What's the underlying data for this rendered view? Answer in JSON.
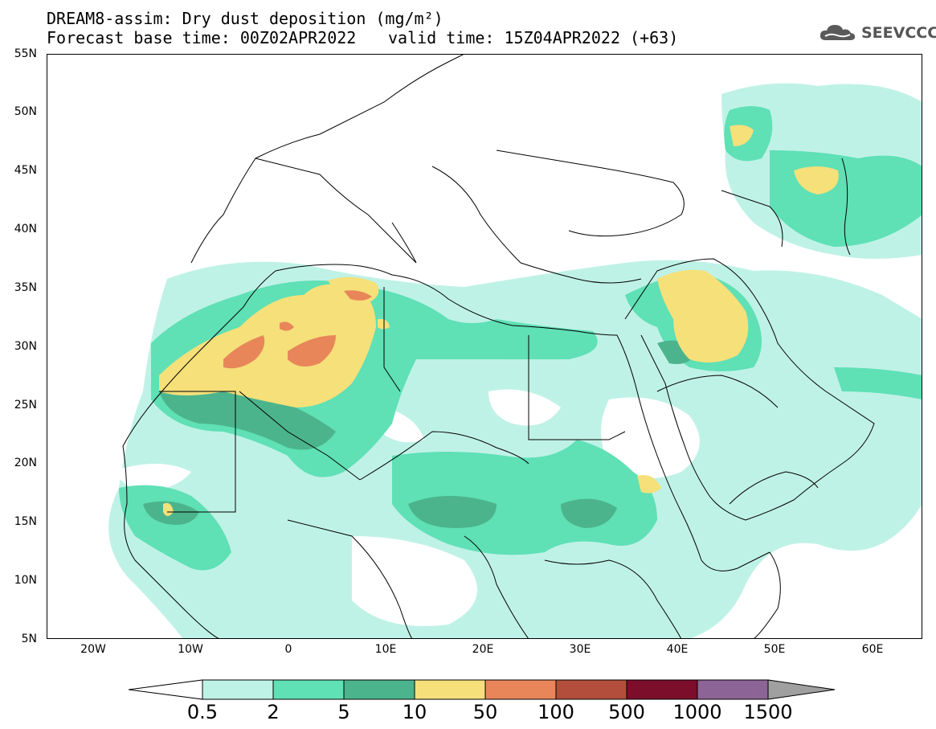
{
  "header": {
    "title_line1": "DREAM8-assim: Dry dust deposition (mg/m²)",
    "title_line2_left": "Forecast base time: 00Z02APR2022",
    "title_line2_right": "valid time: 15Z04APR2022 (+63)",
    "logo_text": "SEEVCCC"
  },
  "map": {
    "lat_labels": [
      "55N",
      "50N",
      "45N",
      "40N",
      "35N",
      "30N",
      "25N",
      "20N",
      "15N",
      "10N",
      "5N"
    ],
    "lon_labels": [
      "20W",
      "10W",
      "0",
      "10E",
      "20E",
      "30E",
      "40E",
      "50E",
      "60E"
    ],
    "lat_range": [
      5,
      55
    ],
    "lon_range": [
      -25,
      65
    ]
  },
  "legend": {
    "labels": [
      "0.5",
      "2",
      "5",
      "10",
      "50",
      "100",
      "500",
      "1000",
      "1500"
    ],
    "colors": [
      "#bff2e6",
      "#5fe0b5",
      "#4cb48c",
      "#f5e07a",
      "#e8865a",
      "#b44e3c",
      "#7c0e2c",
      "#8c6496",
      "#a0a0a0"
    ],
    "under_color": "#ffffff",
    "over_color": "#a0a0a0"
  }
}
